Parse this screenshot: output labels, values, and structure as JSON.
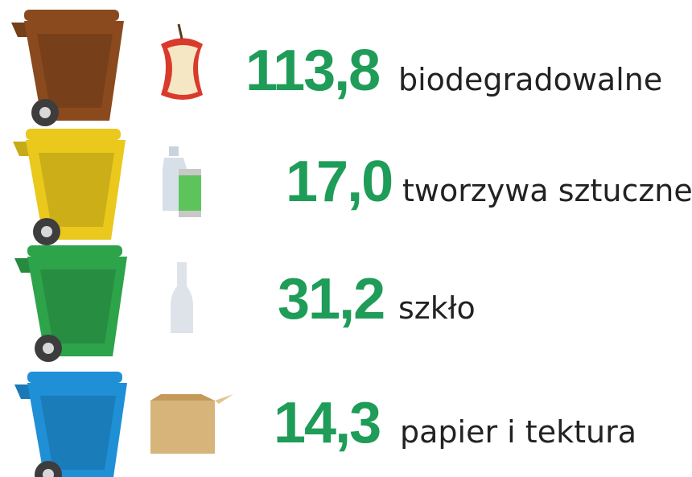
{
  "items": [
    {
      "value": "113,8",
      "label": "biodegradowalne"
    },
    {
      "value": "17,0",
      "label": "tworzywa sztuczne"
    },
    {
      "value": "31,2",
      "label": "szkło"
    },
    {
      "value": "14,3",
      "label": "papier i tektura"
    }
  ]
}
